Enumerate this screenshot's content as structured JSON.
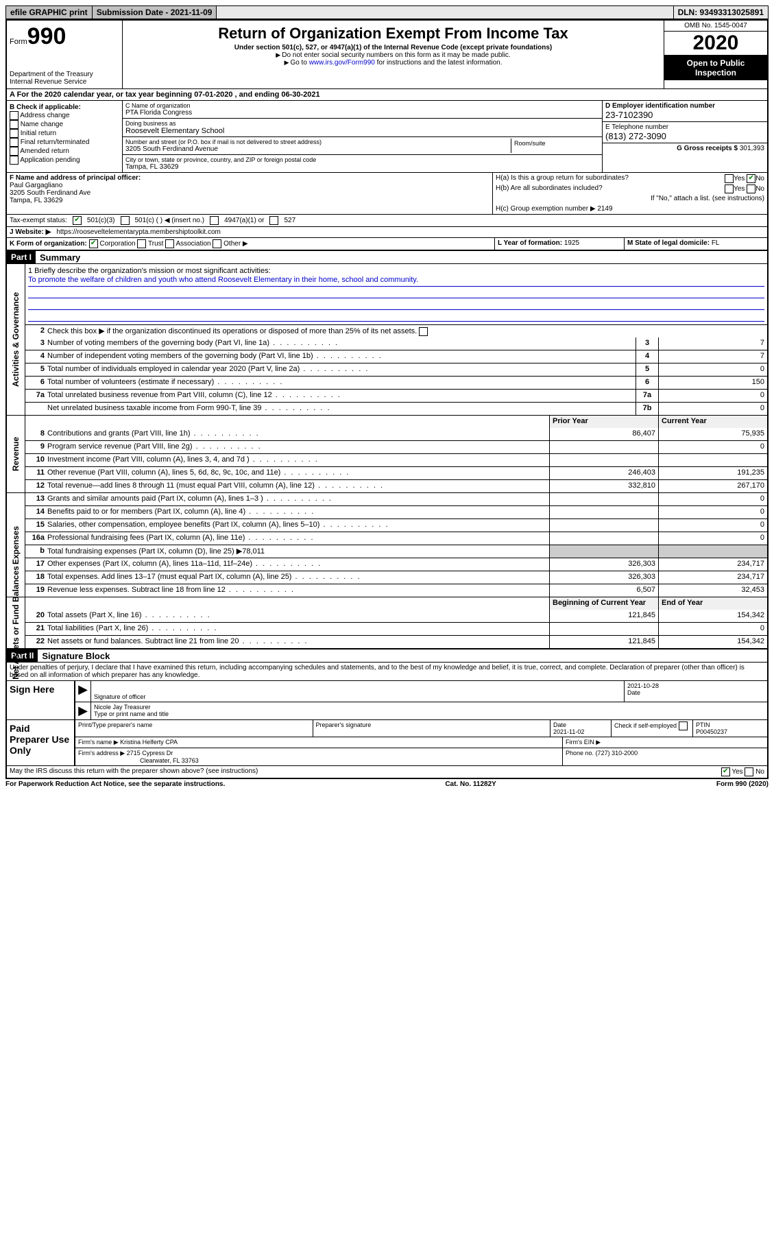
{
  "topbar": {
    "efile": "efile GRAPHIC print",
    "sub_label": "Submission Date - 2021-11-09",
    "dln": "DLN: 93493313025891"
  },
  "header": {
    "form_word": "Form",
    "form_num": "990",
    "dept": "Department of the Treasury\nInternal Revenue Service",
    "title": "Return of Organization Exempt From Income Tax",
    "subtitle": "Under section 501(c), 527, or 4947(a)(1) of the Internal Revenue Code (except private foundations)",
    "note1": "Do not enter social security numbers on this form as it may be made public.",
    "note2_pre": "Go to ",
    "note2_link": "www.irs.gov/Form990",
    "note2_post": " for instructions and the latest information.",
    "omb": "OMB No. 1545-0047",
    "year": "2020",
    "inspect": "Open to Public Inspection"
  },
  "row_a": "A  For the 2020 calendar year, or tax year beginning 07-01-2020    , and ending 06-30-2021",
  "col_b": {
    "title": "B Check if applicable:",
    "items": [
      "Address change",
      "Name change",
      "Initial return",
      "Final return/terminated",
      "Amended return",
      "Application pending"
    ]
  },
  "col_c": {
    "name_lbl": "C Name of organization",
    "name": "PTA Florida Congress",
    "dba_lbl": "Doing business as",
    "dba": "Roosevelt Elementary School",
    "addr_lbl": "Number and street (or P.O. box if mail is not delivered to street address)",
    "room_lbl": "Room/suite",
    "addr": "3205 South Ferdinand Avenue",
    "city_lbl": "City or town, state or province, country, and ZIP or foreign postal code",
    "city": "Tampa, FL  33629"
  },
  "col_d": {
    "d_lbl": "D Employer identification number",
    "d_val": "23-7102390",
    "e_lbl": "E Telephone number",
    "e_val": "(813) 272-3090",
    "g_lbl": "G Gross receipts $",
    "g_val": "301,393"
  },
  "col_f": {
    "lbl": "F Name and address of principal officer:",
    "name": "Paul Gargagliano",
    "addr1": "3205 South Ferdinand Ave",
    "addr2": "Tampa, FL  33629"
  },
  "col_h": {
    "ha": "H(a)  Is this a group return for subordinates?",
    "hb": "H(b)  Are all subordinates included?",
    "hb_note": "If \"No,\" attach a list. (see instructions)",
    "hc": "H(c)  Group exemption number ▶",
    "hc_val": "2149",
    "yes": "Yes",
    "no": "No"
  },
  "tax_status": {
    "lbl": "Tax-exempt status:",
    "o1": "501(c)(3)",
    "o2": "501(c) (  ) ◀ (insert no.)",
    "o3": "4947(a)(1) or",
    "o4": "527"
  },
  "row_j": {
    "lbl": "J   Website: ▶",
    "val": "https://rooseveltelementarypta.membershiptoolkit.com"
  },
  "row_k": {
    "lbl": "K Form of organization:",
    "opts": [
      "Corporation",
      "Trust",
      "Association",
      "Other ▶"
    ],
    "l_lbl": "L Year of formation:",
    "l_val": "1925",
    "m_lbl": "M State of legal domicile:",
    "m_val": "FL"
  },
  "part1": {
    "hdr": "Part I",
    "title": "Summary"
  },
  "summary": {
    "q1_lbl": "1   Briefly describe the organization's mission or most significant activities:",
    "q1_text": "To promote the welfare of children and youth who attend Roosevelt Elementary in their home, school and community.",
    "q2": "Check this box ▶      if the organization discontinued its operations or disposed of more than 25% of its net assets.",
    "lines_top": [
      {
        "n": "3",
        "d": "Number of voting members of the governing body (Part VI, line 1a)",
        "box": "3",
        "v": "7"
      },
      {
        "n": "4",
        "d": "Number of independent voting members of the governing body (Part VI, line 1b)",
        "box": "4",
        "v": "7"
      },
      {
        "n": "5",
        "d": "Total number of individuals employed in calendar year 2020 (Part V, line 2a)",
        "box": "5",
        "v": "0"
      },
      {
        "n": "6",
        "d": "Total number of volunteers (estimate if necessary)",
        "box": "6",
        "v": "150"
      },
      {
        "n": "7a",
        "d": "Total unrelated business revenue from Part VIII, column (C), line 12",
        "box": "7a",
        "v": "0"
      },
      {
        "n": "",
        "d": "Net unrelated business taxable income from Form 990-T, line 39",
        "box": "7b",
        "v": "0"
      }
    ]
  },
  "revenue": {
    "hdr_prior": "Prior Year",
    "hdr_curr": "Current Year",
    "lines": [
      {
        "n": "8",
        "d": "Contributions and grants (Part VIII, line 1h)",
        "p": "86,407",
        "c": "75,935"
      },
      {
        "n": "9",
        "d": "Program service revenue (Part VIII, line 2g)",
        "p": "",
        "c": "0"
      },
      {
        "n": "10",
        "d": "Investment income (Part VIII, column (A), lines 3, 4, and 7d )",
        "p": "",
        "c": ""
      },
      {
        "n": "11",
        "d": "Other revenue (Part VIII, column (A), lines 5, 6d, 8c, 9c, 10c, and 11e)",
        "p": "246,403",
        "c": "191,235"
      },
      {
        "n": "12",
        "d": "Total revenue—add lines 8 through 11 (must equal Part VIII, column (A), line 12)",
        "p": "332,810",
        "c": "267,170"
      }
    ]
  },
  "expenses": {
    "lines": [
      {
        "n": "13",
        "d": "Grants and similar amounts paid (Part IX, column (A), lines 1–3 )",
        "p": "",
        "c": "0"
      },
      {
        "n": "14",
        "d": "Benefits paid to or for members (Part IX, column (A), line 4)",
        "p": "",
        "c": "0"
      },
      {
        "n": "15",
        "d": "Salaries, other compensation, employee benefits (Part IX, column (A), lines 5–10)",
        "p": "",
        "c": "0"
      },
      {
        "n": "16a",
        "d": "Professional fundraising fees (Part IX, column (A), line 11e)",
        "p": "",
        "c": "0"
      },
      {
        "n": "b",
        "d": "Total fundraising expenses (Part IX, column (D), line 25) ▶78,011",
        "p": "__shade__",
        "c": "__shade__"
      },
      {
        "n": "17",
        "d": "Other expenses (Part IX, column (A), lines 11a–11d, 11f–24e)",
        "p": "326,303",
        "c": "234,717"
      },
      {
        "n": "18",
        "d": "Total expenses. Add lines 13–17 (must equal Part IX, column (A), line 25)",
        "p": "326,303",
        "c": "234,717"
      },
      {
        "n": "19",
        "d": "Revenue less expenses. Subtract line 18 from line 12",
        "p": "6,507",
        "c": "32,453"
      }
    ]
  },
  "netassets": {
    "hdr_prior": "Beginning of Current Year",
    "hdr_curr": "End of Year",
    "lines": [
      {
        "n": "20",
        "d": "Total assets (Part X, line 16)",
        "p": "121,845",
        "c": "154,342"
      },
      {
        "n": "21",
        "d": "Total liabilities (Part X, line 26)",
        "p": "",
        "c": "0"
      },
      {
        "n": "22",
        "d": "Net assets or fund balances. Subtract line 21 from line 20",
        "p": "121,845",
        "c": "154,342"
      }
    ]
  },
  "vlabels": {
    "gov": "Activities & Governance",
    "rev": "Revenue",
    "exp": "Expenses",
    "na": "Net Assets or Fund Balances"
  },
  "part2": {
    "hdr": "Part II",
    "title": "Signature Block"
  },
  "sig_text": "Under penalties of perjury, I declare that I have examined this return, including accompanying schedules and statements, and to the best of my knowledge and belief, it is true, correct, and complete. Declaration of preparer (other than officer) is based on all information of which preparer has any knowledge.",
  "sign_here": {
    "lbl": "Sign Here",
    "sig_lbl": "Signature of officer",
    "date": "2021-10-28",
    "date_lbl": "Date",
    "name": "Nicole Jay Treasurer",
    "name_lbl": "Type or print name and title"
  },
  "paid_prep": {
    "lbl": "Paid Preparer Use Only",
    "c1": "Print/Type preparer's name",
    "c2": "Preparer's signature",
    "c3_lbl": "Date",
    "c3_val": "2021-11-02",
    "c4": "Check       if self-employed",
    "c5_lbl": "PTIN",
    "c5_val": "P00450237",
    "firm_name_lbl": "Firm's name    ▶",
    "firm_name": "Kristina Helferty CPA",
    "firm_ein_lbl": "Firm's EIN ▶",
    "firm_addr_lbl": "Firm's address ▶",
    "firm_addr1": "2715 Cypress Dr",
    "firm_addr2": "Clearwater, FL  33763",
    "phone_lbl": "Phone no.",
    "phone": "(727) 310-2000"
  },
  "irs_discuss": "May the IRS discuss this return with the preparer shown above? (see instructions)",
  "bottom": {
    "left": "For Paperwork Reduction Act Notice, see the separate instructions.",
    "mid": "Cat. No. 11282Y",
    "right": "Form 990 (2020)"
  }
}
